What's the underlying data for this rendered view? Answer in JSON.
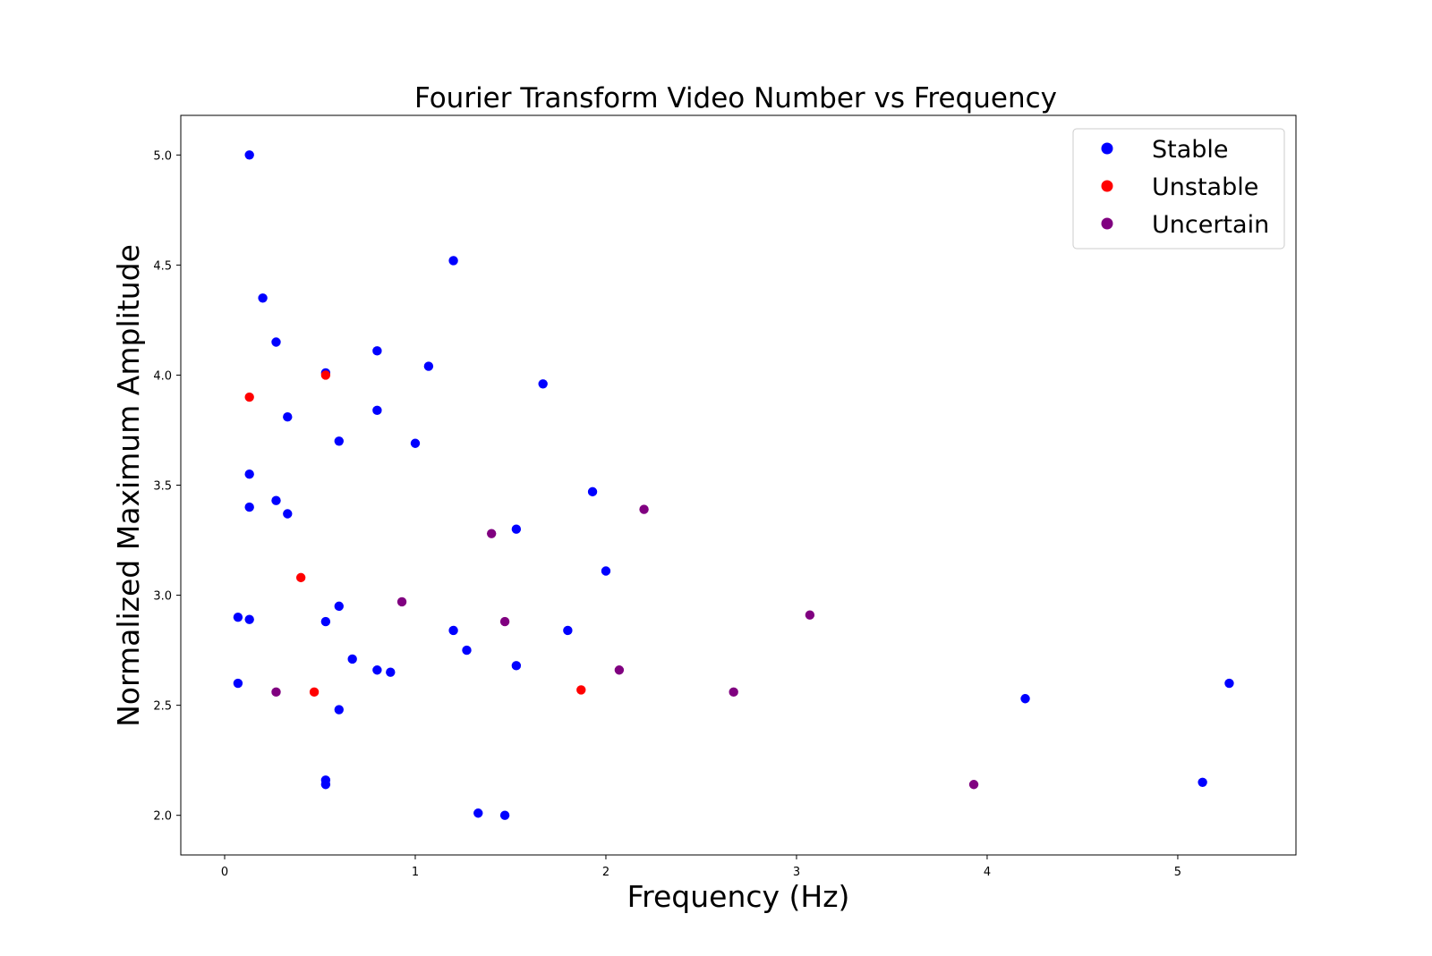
{
  "chart_data": {
    "type": "scatter",
    "title": "Fourier Transform Video Number vs Frequency",
    "xlabel": "Frequency (Hz)",
    "ylabel": "Normalized Maximum Amplitude",
    "xlim": [
      -0.23,
      5.62
    ],
    "ylim": [
      1.82,
      5.18
    ],
    "xticks": [
      0,
      1,
      2,
      3,
      4,
      5
    ],
    "xtick_labels": [
      "0",
      "1",
      "2",
      "3",
      "4",
      "5"
    ],
    "yticks": [
      2.0,
      2.5,
      3.0,
      3.5,
      4.0,
      4.5,
      5.0
    ],
    "ytick_labels": [
      "2.0",
      "2.5",
      "3.0",
      "3.5",
      "4.0",
      "4.5",
      "5.0"
    ],
    "grid": false,
    "legend_position": "top-right",
    "series": [
      {
        "name": "Stable",
        "color": "#0000ff",
        "points": [
          [
            0.13,
            5.0
          ],
          [
            0.2,
            4.35
          ],
          [
            0.27,
            4.15
          ],
          [
            0.53,
            4.01
          ],
          [
            0.8,
            4.11
          ],
          [
            1.07,
            4.04
          ],
          [
            1.2,
            4.52
          ],
          [
            0.33,
            3.81
          ],
          [
            0.8,
            3.84
          ],
          [
            0.6,
            3.7
          ],
          [
            1.0,
            3.69
          ],
          [
            1.67,
            3.96
          ],
          [
            0.13,
            3.55
          ],
          [
            0.13,
            3.4
          ],
          [
            0.27,
            3.43
          ],
          [
            0.33,
            3.37
          ],
          [
            1.53,
            3.3
          ],
          [
            1.93,
            3.47
          ],
          [
            2.0,
            3.11
          ],
          [
            0.07,
            2.9
          ],
          [
            0.13,
            2.89
          ],
          [
            0.53,
            2.88
          ],
          [
            0.6,
            2.95
          ],
          [
            1.2,
            2.84
          ],
          [
            1.27,
            2.75
          ],
          [
            1.8,
            2.84
          ],
          [
            0.67,
            2.71
          ],
          [
            0.8,
            2.66
          ],
          [
            0.87,
            2.65
          ],
          [
            1.53,
            2.68
          ],
          [
            0.07,
            2.6
          ],
          [
            0.6,
            2.48
          ],
          [
            0.53,
            2.14
          ],
          [
            0.53,
            2.16
          ],
          [
            1.33,
            2.01
          ],
          [
            1.47,
            2.0
          ],
          [
            4.2,
            2.53
          ],
          [
            5.13,
            2.15
          ],
          [
            5.27,
            2.6
          ]
        ]
      },
      {
        "name": "Unstable",
        "color": "#ff0000",
        "points": [
          [
            0.13,
            3.9
          ],
          [
            0.53,
            4.0
          ],
          [
            0.4,
            3.08
          ],
          [
            0.47,
            2.56
          ],
          [
            1.87,
            2.57
          ]
        ]
      },
      {
        "name": "Uncertain",
        "color": "#800080",
        "points": [
          [
            0.27,
            2.56
          ],
          [
            0.93,
            2.97
          ],
          [
            1.4,
            3.28
          ],
          [
            1.47,
            2.88
          ],
          [
            2.07,
            2.66
          ],
          [
            2.2,
            3.39
          ],
          [
            2.67,
            2.56
          ],
          [
            3.07,
            2.91
          ],
          [
            3.93,
            2.14
          ]
        ]
      }
    ]
  }
}
